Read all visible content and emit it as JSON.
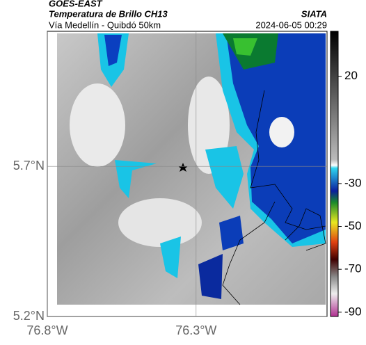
{
  "header": {
    "left_title": "GOES-EAST",
    "subtitle": "Temperatura de Brillo CH13",
    "right_title": "SIATA",
    "location": "Vía Medellín - Quibdó 50km",
    "timestamp": "2024-06-05 00:29"
  },
  "map": {
    "xlim": [
      -76.8,
      -75.86
    ],
    "ylim": [
      5.2,
      6.15
    ],
    "xticks": [
      {
        "value": -76.8,
        "label": "76.8°W"
      },
      {
        "value": -76.3,
        "label": "76.3°W"
      }
    ],
    "yticks": [
      {
        "value": 5.7,
        "label": "5.7°N"
      },
      {
        "value": 5.2,
        "label": "5.2°N"
      }
    ]
  },
  "colorbar": {
    "clim": [
      -92,
      41
    ],
    "ticks": [
      20,
      -30,
      -50,
      -70,
      -90
    ]
  }
}
